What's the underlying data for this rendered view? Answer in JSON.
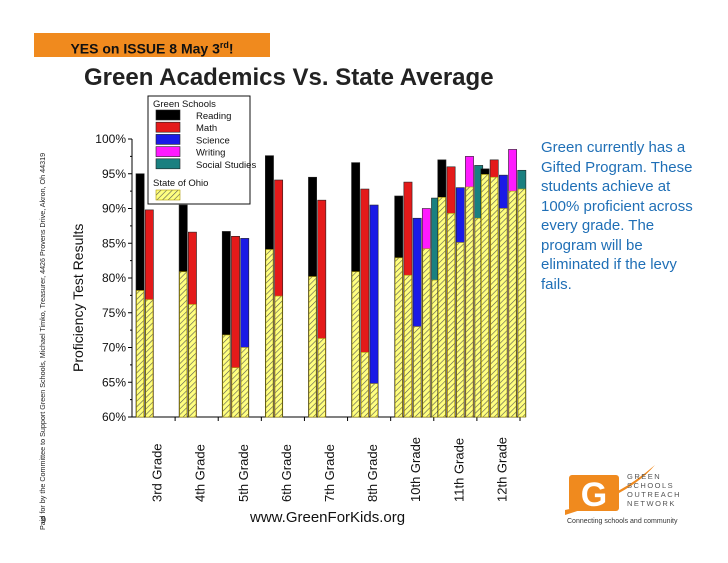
{
  "banner": {
    "text": "YES on ISSUE 8 May 3",
    "sup": "rd",
    "tail": "!"
  },
  "side_text": "Paid for by the Committee to Support Green Schools, Michael Timko, Treasurer, 4426 Provens Drive, Akron, Oh 44319",
  "slide_number": "9",
  "url": "www.GreenForKids.org",
  "side_note": "Green currently has a Gifted Program. These students achieve at 100% proficient across every grade.  The program will be eliminated if the levy fails.",
  "logo": {
    "letter": "G",
    "line1": "GREEN",
    "line2": "SCHOOLS",
    "line3": "OUTREACH",
    "line4": "NETWORK",
    "tagline": "Connecting schools and community"
  },
  "colors": {
    "banner": "#f08a1e",
    "note": "#1f6fb6",
    "reading": "#000000",
    "math": "#e41a1a",
    "science": "#1a1ae6",
    "writing": "#ff1aff",
    "social_studies": "#1a8080",
    "state": "#ffff80"
  },
  "chart_data": {
    "type": "bar",
    "title": "Green Academics Vs. State Average",
    "ylabel": "Proficiency Test Results",
    "xlabel": "",
    "ylim": [
      60,
      100
    ],
    "yticks": [
      "60%",
      "65%",
      "70%",
      "75%",
      "80%",
      "85%",
      "90%",
      "95%",
      "100%"
    ],
    "categories": [
      "3rd Grade",
      "4th Grade",
      "5th Grade",
      "6th Grade",
      "7th Grade",
      "8th Grade",
      "10th Grade",
      "11th Grade",
      "12th Grade"
    ],
    "legend": {
      "group1": "Green Schools",
      "group2": "State of Ohio",
      "placement": "top-center"
    },
    "series": [
      {
        "name": "Reading",
        "key": "reading",
        "green": [
          95,
          90.5,
          86.7,
          97.6,
          94.5,
          96.6,
          91.8,
          97.0,
          95.7
        ],
        "state": [
          78.2,
          80.9,
          71.8,
          84.1,
          80.2,
          80.9,
          82.9,
          91.6,
          94.9
        ]
      },
      {
        "name": "Math",
        "key": "math",
        "green": [
          89.8,
          86.6,
          86.0,
          94.1,
          91.2,
          92.8,
          93.8,
          96.0,
          97.0
        ],
        "state": [
          76.9,
          76.2,
          67.1,
          77.4,
          71.3,
          69.3,
          80.4,
          89.3,
          94.5
        ]
      },
      {
        "name": "Science",
        "key": "science",
        "green": [
          null,
          null,
          85.7,
          null,
          null,
          90.5,
          88.6,
          93.0,
          94.8
        ],
        "state": [
          null,
          null,
          70.0,
          null,
          null,
          64.8,
          73.0,
          85.1,
          90.0
        ]
      },
      {
        "name": "Writing",
        "key": "writing",
        "green": [
          null,
          null,
          null,
          null,
          null,
          null,
          90.0,
          97.5,
          98.5
        ],
        "state": [
          null,
          null,
          null,
          null,
          null,
          null,
          84.2,
          93.1,
          92.5
        ]
      },
      {
        "name": "Social Studies",
        "key": "social_studies",
        "green": [
          null,
          null,
          null,
          null,
          null,
          null,
          91.5,
          96.2,
          95.5
        ],
        "state": [
          null,
          null,
          null,
          null,
          null,
          null,
          79.7,
          88.6,
          92.8
        ]
      }
    ]
  }
}
